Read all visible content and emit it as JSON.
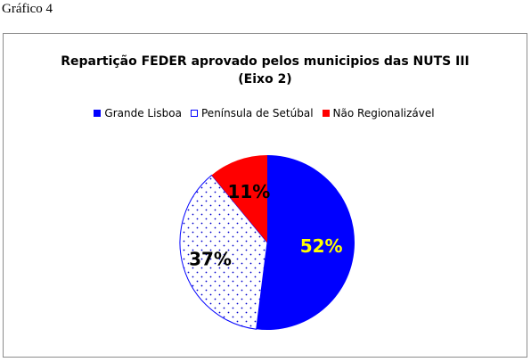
{
  "doc": {
    "caption": "Gráfico 4"
  },
  "chart_data": {
    "type": "pie",
    "title": "Repartição FEDER aprovado pelos municipios das NUTS III",
    "subtitle": "(Eixo 2)",
    "categories": [
      "Grande Lisboa",
      "Península de Setúbal",
      "Não Regionalizável"
    ],
    "values": [
      52,
      37,
      11
    ],
    "labels": [
      "52%",
      "37%",
      "11%"
    ],
    "colors": [
      "#0000ff",
      "#ffffff",
      "#ff0000"
    ],
    "patterns": [
      "solid",
      "dotted-blue",
      "solid"
    ],
    "label_colors": [
      "#ffff00",
      "#000000",
      "#000000"
    ],
    "legend_position": "top",
    "start": "12 o'clock, clockwise"
  }
}
